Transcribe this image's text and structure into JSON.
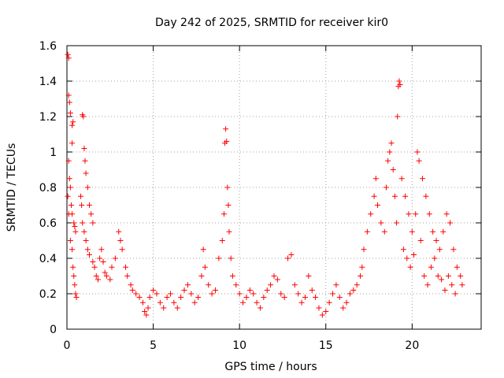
{
  "chart_data": {
    "type": "scatter",
    "title": "Day 242 of 2025, SRMTID for receiver kir0",
    "xlabel": "GPS time / hours",
    "ylabel": "SRMTID / TECUs",
    "xlim": [
      0,
      24
    ],
    "ylim": [
      0,
      1.6
    ],
    "xticks": [
      0,
      5,
      10,
      15,
      20
    ],
    "xtick_labels": [
      "0",
      "5",
      "10",
      "15",
      "20"
    ],
    "yticks": [
      0,
      0.2,
      0.4,
      0.6,
      0.8,
      1.0,
      1.2,
      1.4,
      1.6
    ],
    "ytick_labels": [
      "0",
      "0.2",
      "0.4",
      "0.6",
      "0.8",
      "1",
      "1.2",
      "1.4",
      "1.6"
    ],
    "grid": true,
    "marker": "+",
    "marker_color": "#ff0000",
    "series": [
      {
        "name": "SRMTID",
        "points": [
          [
            0.05,
            1.55
          ],
          [
            0.1,
            1.53
          ],
          [
            0.1,
            1.32
          ],
          [
            0.15,
            1.28
          ],
          [
            0.2,
            1.22
          ],
          [
            0.3,
            1.15
          ],
          [
            0.35,
            1.17
          ],
          [
            0.1,
            0.95
          ],
          [
            0.15,
            0.85
          ],
          [
            0.2,
            0.8
          ],
          [
            0.25,
            0.7
          ],
          [
            0.3,
            0.65
          ],
          [
            0.4,
            0.6
          ],
          [
            0.45,
            0.58
          ],
          [
            0.5,
            0.55
          ],
          [
            0.05,
            0.75
          ],
          [
            0.1,
            0.65
          ],
          [
            0.2,
            0.5
          ],
          [
            0.3,
            0.45
          ],
          [
            0.35,
            0.35
          ],
          [
            0.4,
            0.3
          ],
          [
            0.45,
            0.25
          ],
          [
            0.5,
            0.2
          ],
          [
            0.55,
            0.18
          ],
          [
            0.3,
            1.05
          ],
          [
            0.9,
            1.21
          ],
          [
            0.95,
            1.2
          ],
          [
            1.0,
            1.02
          ],
          [
            1.05,
            0.95
          ],
          [
            1.1,
            0.88
          ],
          [
            1.2,
            0.8
          ],
          [
            1.3,
            0.7
          ],
          [
            1.4,
            0.65
          ],
          [
            1.5,
            0.6
          ],
          [
            0.8,
            0.75
          ],
          [
            0.85,
            0.7
          ],
          [
            0.9,
            0.6
          ],
          [
            1.0,
            0.55
          ],
          [
            1.1,
            0.5
          ],
          [
            1.2,
            0.45
          ],
          [
            1.3,
            0.42
          ],
          [
            1.5,
            0.38
          ],
          [
            1.6,
            0.35
          ],
          [
            1.7,
            0.3
          ],
          [
            1.8,
            0.28
          ],
          [
            1.9,
            0.4
          ],
          [
            2.0,
            0.45
          ],
          [
            2.1,
            0.38
          ],
          [
            2.2,
            0.32
          ],
          [
            2.3,
            0.3
          ],
          [
            2.5,
            0.28
          ],
          [
            2.6,
            0.35
          ],
          [
            2.8,
            0.4
          ],
          [
            3.0,
            0.55
          ],
          [
            3.1,
            0.5
          ],
          [
            3.2,
            0.45
          ],
          [
            3.4,
            0.35
          ],
          [
            3.5,
            0.3
          ],
          [
            3.7,
            0.25
          ],
          [
            3.8,
            0.22
          ],
          [
            4.0,
            0.2
          ],
          [
            4.2,
            0.18
          ],
          [
            4.4,
            0.15
          ],
          [
            4.5,
            0.1
          ],
          [
            4.6,
            0.08
          ],
          [
            4.7,
            0.12
          ],
          [
            4.8,
            0.18
          ],
          [
            5.0,
            0.22
          ],
          [
            5.2,
            0.2
          ],
          [
            5.4,
            0.15
          ],
          [
            5.6,
            0.12
          ],
          [
            5.8,
            0.18
          ],
          [
            6.0,
            0.2
          ],
          [
            6.2,
            0.15
          ],
          [
            6.4,
            0.12
          ],
          [
            6.6,
            0.18
          ],
          [
            6.8,
            0.22
          ],
          [
            7.0,
            0.25
          ],
          [
            7.2,
            0.2
          ],
          [
            7.4,
            0.15
          ],
          [
            7.6,
            0.18
          ],
          [
            7.8,
            0.3
          ],
          [
            7.9,
            0.45
          ],
          [
            8.0,
            0.35
          ],
          [
            8.2,
            0.25
          ],
          [
            8.4,
            0.2
          ],
          [
            8.6,
            0.22
          ],
          [
            8.8,
            0.4
          ],
          [
            9.0,
            0.5
          ],
          [
            9.1,
            0.65
          ],
          [
            9.15,
            1.05
          ],
          [
            9.2,
            1.13
          ],
          [
            9.25,
            1.06
          ],
          [
            9.3,
            0.8
          ],
          [
            9.35,
            0.7
          ],
          [
            9.4,
            0.55
          ],
          [
            9.5,
            0.4
          ],
          [
            9.6,
            0.3
          ],
          [
            9.8,
            0.25
          ],
          [
            10.0,
            0.2
          ],
          [
            10.2,
            0.15
          ],
          [
            10.4,
            0.18
          ],
          [
            10.6,
            0.22
          ],
          [
            10.8,
            0.2
          ],
          [
            11.0,
            0.15
          ],
          [
            11.2,
            0.12
          ],
          [
            11.4,
            0.18
          ],
          [
            11.6,
            0.22
          ],
          [
            11.8,
            0.25
          ],
          [
            12.0,
            0.3
          ],
          [
            12.2,
            0.28
          ],
          [
            12.4,
            0.2
          ],
          [
            12.6,
            0.18
          ],
          [
            12.8,
            0.4
          ],
          [
            13.0,
            0.42
          ],
          [
            13.2,
            0.25
          ],
          [
            13.4,
            0.2
          ],
          [
            13.6,
            0.15
          ],
          [
            13.8,
            0.18
          ],
          [
            14.0,
            0.3
          ],
          [
            14.2,
            0.22
          ],
          [
            14.4,
            0.18
          ],
          [
            14.6,
            0.12
          ],
          [
            14.8,
            0.08
          ],
          [
            15.0,
            0.1
          ],
          [
            15.2,
            0.15
          ],
          [
            15.4,
            0.2
          ],
          [
            15.6,
            0.25
          ],
          [
            15.8,
            0.18
          ],
          [
            16.0,
            0.12
          ],
          [
            16.2,
            0.15
          ],
          [
            16.4,
            0.2
          ],
          [
            16.6,
            0.22
          ],
          [
            16.8,
            0.25
          ],
          [
            17.0,
            0.3
          ],
          [
            17.1,
            0.35
          ],
          [
            17.2,
            0.45
          ],
          [
            17.4,
            0.55
          ],
          [
            17.6,
            0.65
          ],
          [
            17.8,
            0.75
          ],
          [
            17.9,
            0.85
          ],
          [
            18.0,
            0.7
          ],
          [
            18.2,
            0.6
          ],
          [
            18.4,
            0.55
          ],
          [
            18.5,
            0.8
          ],
          [
            18.6,
            0.95
          ],
          [
            18.7,
            1.0
          ],
          [
            18.8,
            1.05
          ],
          [
            18.9,
            0.9
          ],
          [
            19.0,
            0.75
          ],
          [
            19.1,
            0.6
          ],
          [
            19.15,
            1.2
          ],
          [
            19.2,
            1.37
          ],
          [
            19.25,
            1.4
          ],
          [
            19.3,
            1.38
          ],
          [
            19.4,
            0.85
          ],
          [
            19.6,
            0.75
          ],
          [
            19.8,
            0.65
          ],
          [
            20.0,
            0.55
          ],
          [
            20.2,
            0.65
          ],
          [
            20.3,
            1.0
          ],
          [
            20.4,
            0.95
          ],
          [
            20.6,
            0.85
          ],
          [
            20.8,
            0.75
          ],
          [
            21.0,
            0.65
          ],
          [
            21.2,
            0.55
          ],
          [
            21.4,
            0.5
          ],
          [
            21.6,
            0.45
          ],
          [
            21.8,
            0.55
          ],
          [
            22.0,
            0.65
          ],
          [
            22.2,
            0.6
          ],
          [
            22.4,
            0.45
          ],
          [
            22.6,
            0.35
          ],
          [
            22.8,
            0.3
          ],
          [
            22.9,
            0.25
          ],
          [
            19.5,
            0.45
          ],
          [
            19.7,
            0.4
          ],
          [
            19.9,
            0.35
          ],
          [
            20.1,
            0.42
          ],
          [
            20.5,
            0.5
          ],
          [
            20.7,
            0.3
          ],
          [
            20.9,
            0.25
          ],
          [
            21.1,
            0.35
          ],
          [
            21.3,
            0.4
          ],
          [
            21.5,
            0.3
          ],
          [
            21.7,
            0.28
          ],
          [
            21.9,
            0.22
          ],
          [
            22.1,
            0.3
          ],
          [
            22.3,
            0.25
          ],
          [
            22.5,
            0.2
          ]
        ]
      }
    ]
  }
}
